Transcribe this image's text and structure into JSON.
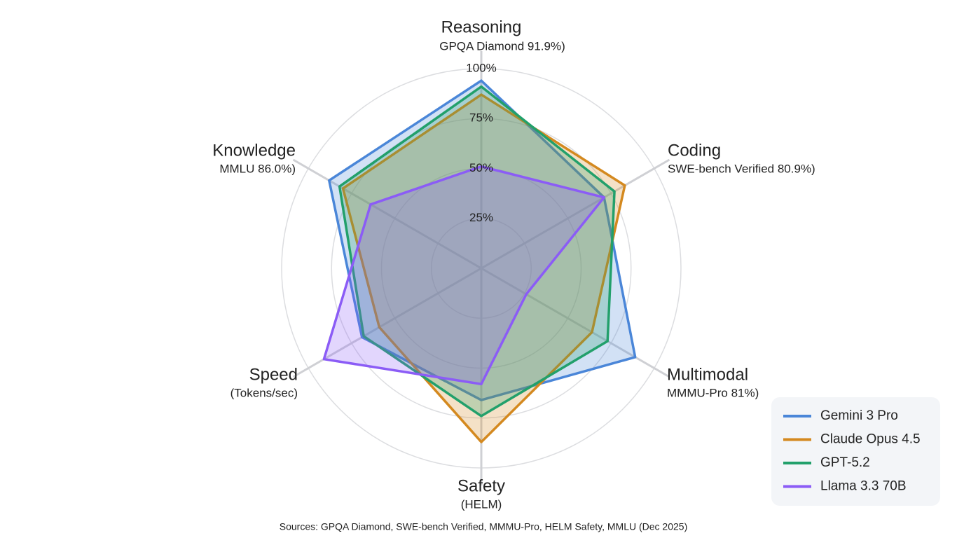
{
  "chart_data": {
    "type": "radar",
    "axes": [
      {
        "name": "Reasoning",
        "note": "GPQA Diamond 91.9%)"
      },
      {
        "name": "Coding",
        "note": "SWE-bench Verified 80.9%)"
      },
      {
        "name": "Multimodal",
        "note": "MMMU-Pro 81%)"
      },
      {
        "name": "Safety",
        "note": "(HELM)"
      },
      {
        "name": "Speed",
        "note": "(Tokens/sec)"
      },
      {
        "name": "Knowledge",
        "note": "MMLU 86.0%)"
      }
    ],
    "rlim": [
      0,
      100
    ],
    "rticks": [
      {
        "value": 25,
        "label": "25%"
      },
      {
        "value": 50,
        "label": "50%"
      },
      {
        "value": 75,
        "label": "75%"
      },
      {
        "value": 100,
        "label": "100%"
      }
    ],
    "series": [
      {
        "name": "Gemini 3 Pro",
        "color": "#4a86d8",
        "values": [
          94,
          71,
          89,
          66,
          69,
          88
        ]
      },
      {
        "name": "Claude Opus 4.5",
        "color": "#d4891f",
        "values": [
          87,
          83,
          64,
          87,
          59,
          80
        ]
      },
      {
        "name": "GPT-5.2",
        "color": "#22a06b",
        "values": [
          91,
          77,
          73,
          74,
          68,
          82
        ]
      },
      {
        "name": "Llama 3.3 70B",
        "color": "#8b5cf6",
        "values": [
          51,
          71,
          26,
          58,
          91,
          64
        ]
      }
    ],
    "legend": "bottom-right",
    "source": "Sources: GPQA Diamond, SWE-bench Verified, MMMU-Pro, HELM Safety, MMLU (Dec 2025)"
  }
}
